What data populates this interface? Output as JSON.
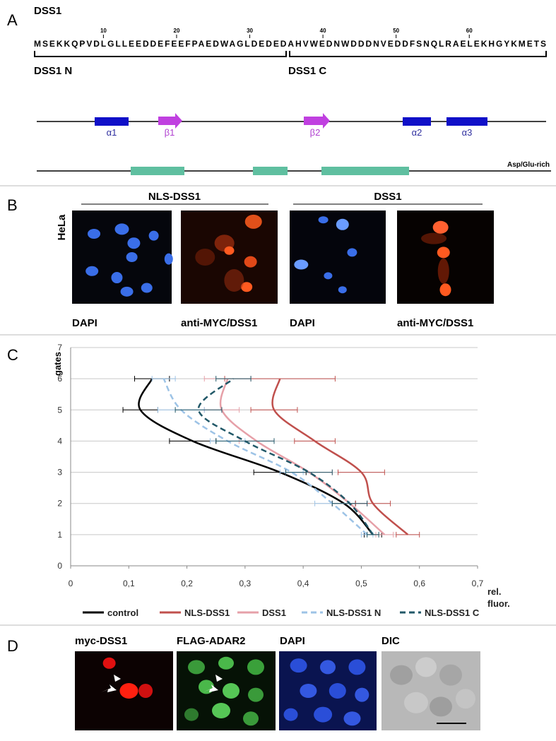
{
  "panel_a": {
    "label": "A",
    "title": "DSS1",
    "sequence": "MSEKKQPVDLGLLEEDDEFEEFPAEDWAGLDEDEDAHVWEDNWDDDNVEDDFSNQLRAELEKHGYKMETS",
    "positions": [
      10,
      20,
      30,
      40,
      50,
      60
    ],
    "domains": [
      "DSS1 N",
      "DSS1 C"
    ],
    "structure": [
      "α1",
      "β1",
      "β2",
      "α2",
      "α3"
    ],
    "region_label": "Asp/Glu-rich"
  },
  "panel_b": {
    "label": "B",
    "groups": [
      "NLS-DSS1",
      "DSS1"
    ],
    "cell_line": "HeLa",
    "image_labels": [
      "DAPI",
      "anti-MYC/DSS1",
      "DAPI",
      "anti-MYC/DSS1"
    ]
  },
  "chart_data": {
    "type": "line",
    "panel_label": "C",
    "orientation": "horizontal",
    "smooth": true,
    "ylabel": "gates",
    "xlabel": "rel. fluor.",
    "y": [
      1,
      2,
      3,
      4,
      5,
      6
    ],
    "xlim": [
      0,
      0.7
    ],
    "xticks": [
      0,
      {
        "value": 0.1,
        "label": "0,1"
      },
      {
        "value": 0.2,
        "label": "0,2"
      },
      {
        "value": 0.3,
        "label": "0,3"
      },
      {
        "value": 0.4,
        "label": "0,4"
      },
      {
        "value": 0.5,
        "label": "0,5"
      },
      {
        "value": 0.6,
        "label": "0,6"
      },
      {
        "value": 0.7,
        "label": "0,7"
      }
    ],
    "ylim": [
      0,
      7
    ],
    "yticks": [
      0,
      1,
      2,
      3,
      4,
      5,
      6,
      7
    ],
    "grid": true,
    "legend": "bottom",
    "series": [
      {
        "name": "control",
        "color": "#000000",
        "dash": false,
        "values": [
          0.52,
          0.47,
          0.36,
          0.21,
          0.12,
          0.14
        ],
        "errors": [
          0.015,
          0.02,
          0.045,
          0.04,
          0.03,
          0.03
        ]
      },
      {
        "name": "NLS-DSS1",
        "color": "#c0504d",
        "dash": false,
        "values": [
          0.58,
          0.52,
          0.5,
          0.42,
          0.35,
          0.36
        ],
        "errors": [
          0.02,
          0.03,
          0.04,
          0.035,
          0.04,
          0.095
        ]
      },
      {
        "name": "DSS1",
        "color": "#e6a0a8",
        "dash": false,
        "values": [
          0.54,
          0.48,
          0.41,
          0.32,
          0.26,
          0.27
        ],
        "errors": [
          0.015,
          0.03,
          0.04,
          0.03,
          0.03,
          0.04
        ]
      },
      {
        "name": "NLS-DSS1 N",
        "color": "#9dc3e6",
        "dash": true,
        "values": [
          0.51,
          0.45,
          0.38,
          0.27,
          0.19,
          0.16
        ],
        "errors": [
          0.01,
          0.03,
          0.02,
          0.03,
          0.04,
          0.02
        ]
      },
      {
        "name": "NLS-DSS1 C",
        "color": "#215868",
        "dash": true,
        "values": [
          0.52,
          0.48,
          0.41,
          0.3,
          0.22,
          0.28
        ],
        "errors": [
          0.01,
          0.03,
          0.04,
          0.05,
          0.04,
          0.03
        ]
      }
    ]
  },
  "panel_d": {
    "label": "D",
    "image_labels": [
      "myc-DSS1",
      "FLAG-ADAR2",
      "DAPI",
      "DIC"
    ]
  }
}
